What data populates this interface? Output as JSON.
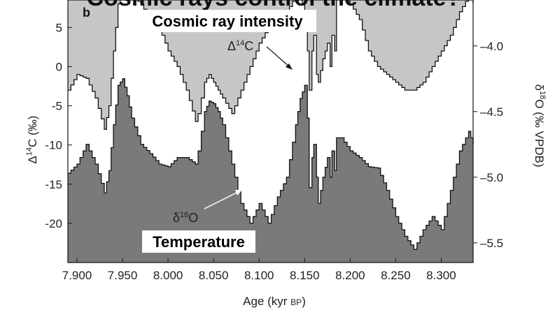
{
  "colors": {
    "c14_fill": "#c6c6c6",
    "o18_fill": "#7a7a7a",
    "plot_bg": "#ffffff",
    "line": "#111111"
  },
  "chart_data": {
    "type": "area",
    "title": "Cosmic rays control the climate?",
    "panel_label": "b",
    "x_axis": {
      "label": "Age (kyr BP)",
      "range": [
        7.89,
        8.335
      ],
      "ticks": [
        "7.900",
        "7.950",
        "8.000",
        "8.050",
        "8.100",
        "8.150",
        "8.200",
        "8.250",
        "8.300"
      ]
    },
    "y_left": {
      "label": "Δ14C (‰)",
      "range": [
        -25,
        8.5
      ],
      "ticks": [
        "5",
        "0",
        "-5",
        "-10",
        "-15",
        "-20"
      ]
    },
    "y_right": {
      "label": "δ18O (‰ VPDB)",
      "range": [
        -5.65,
        -3.65
      ],
      "ticks": [
        "-4.0",
        "-4.5",
        "-5.0",
        "-5.5"
      ]
    },
    "annotations": {
      "cosmic": "Cosmic ray intensity",
      "temperature": "Temperature",
      "c14_label": "Δ14C",
      "o18_label": "δ18O"
    },
    "series": [
      {
        "name": "Δ14C",
        "axis": "left",
        "x": [
          7.89,
          7.9,
          7.91,
          7.92,
          7.93,
          7.935,
          7.94,
          7.945,
          7.95,
          7.955,
          7.96,
          7.97,
          7.98,
          7.99,
          8.0,
          8.01,
          8.02,
          8.03,
          8.033,
          8.04,
          8.045,
          8.05,
          8.055,
          8.06,
          8.07,
          8.08,
          8.09,
          8.1,
          8.11,
          8.12,
          8.13,
          8.14,
          8.145,
          8.15,
          8.153,
          8.155,
          8.158,
          8.16,
          8.163,
          8.165,
          8.17,
          8.175,
          8.178,
          8.18,
          8.183,
          8.185,
          8.19,
          8.2,
          8.21,
          8.22,
          8.23,
          8.24,
          8.25,
          8.26,
          8.27,
          8.28,
          8.29,
          8.3,
          8.31,
          8.32,
          8.33,
          8.335
        ],
        "y": [
          -3,
          -1,
          -1.5,
          -4,
          -8,
          -5,
          2,
          8,
          9,
          9,
          9,
          8,
          6,
          5,
          2,
          0,
          -3,
          -7,
          -6,
          -2,
          -1,
          -2,
          -3,
          -4,
          -6,
          -3,
          0,
          3,
          5,
          6,
          7,
          9,
          9,
          7,
          2,
          -3,
          2,
          4,
          -1,
          -2,
          1,
          3,
          0,
          4,
          2,
          9,
          9,
          8,
          6,
          2,
          0,
          -1,
          -2,
          -3,
          -3,
          -2,
          0,
          2,
          4,
          7,
          9,
          8
        ]
      },
      {
        "name": "δ18O",
        "axis": "right",
        "x": [
          7.89,
          7.9,
          7.91,
          7.92,
          7.93,
          7.935,
          7.94,
          7.945,
          7.95,
          7.955,
          7.96,
          7.97,
          7.98,
          7.99,
          8.0,
          8.01,
          8.02,
          8.03,
          8.033,
          8.04,
          8.045,
          8.05,
          8.055,
          8.06,
          8.07,
          8.08,
          8.09,
          8.1,
          8.11,
          8.12,
          8.13,
          8.14,
          8.145,
          8.15,
          8.153,
          8.155,
          8.158,
          8.16,
          8.163,
          8.165,
          8.17,
          8.175,
          8.178,
          8.18,
          8.183,
          8.185,
          8.19,
          8.2,
          8.21,
          8.22,
          8.23,
          8.24,
          8.25,
          8.26,
          8.27,
          8.28,
          8.29,
          8.3,
          8.31,
          8.32,
          8.33,
          8.335
        ],
        "y": [
          -4.97,
          -4.9,
          -4.75,
          -4.9,
          -5.12,
          -4.95,
          -4.6,
          -4.3,
          -4.25,
          -4.38,
          -4.55,
          -4.75,
          -4.82,
          -4.9,
          -4.92,
          -4.85,
          -4.85,
          -4.9,
          -4.8,
          -4.5,
          -4.42,
          -4.44,
          -4.5,
          -4.6,
          -4.9,
          -5.2,
          -5.35,
          -5.2,
          -5.35,
          -5.15,
          -5.0,
          -4.6,
          -4.4,
          -4.3,
          -4.55,
          -5.08,
          -4.85,
          -4.75,
          -5.0,
          -5.2,
          -5.0,
          -4.85,
          -5.0,
          -4.8,
          -4.95,
          -4.7,
          -4.7,
          -4.8,
          -4.85,
          -4.92,
          -4.93,
          -5.1,
          -5.3,
          -5.45,
          -5.55,
          -5.4,
          -5.3,
          -5.4,
          -5.1,
          -4.8,
          -4.65,
          -4.75
        ]
      }
    ]
  }
}
